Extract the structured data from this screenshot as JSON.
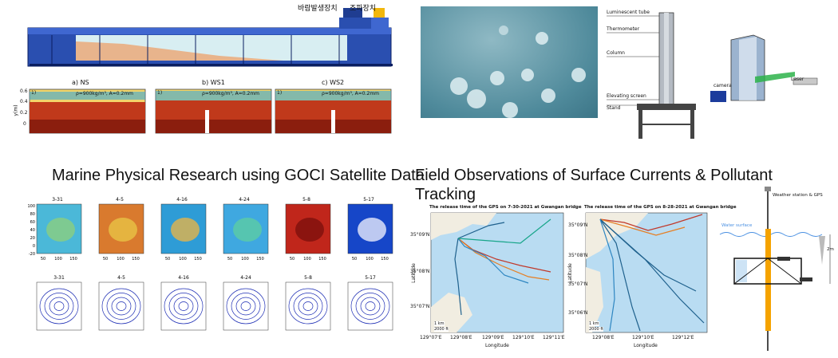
{
  "flume": {
    "labels": {
      "wind": "바람발생장치",
      "wave": "조파장치"
    },
    "panel_titles": [
      "a) NS",
      "b) WS1",
      "c) WS2"
    ],
    "panel_index": "1)",
    "panel_annotation": "ρ=900kg/m³, A=0.2mm",
    "y_axis_label": "y(m)",
    "y_ticks": [
      "0.6",
      "0.4",
      "0.2",
      "0"
    ]
  },
  "column": {
    "labels": [
      "Luminescent tube",
      "Thermometer",
      "Column",
      "Elevating screen",
      "Stand"
    ],
    "camera_label": "camera",
    "laser_label": "Laser"
  },
  "goci": {
    "heading": "Marine Physical Research using GOCI Satellite Data",
    "dates": [
      "3-31",
      "4-5",
      "4-16",
      "4-24",
      "5-8",
      "5-17"
    ],
    "y_ticks": [
      "100",
      "80",
      "60",
      "40",
      "20",
      "0",
      "-20"
    ],
    "x_ticks": [
      "50",
      "100",
      "150"
    ]
  },
  "field": {
    "heading_line1": "Field Observations of Surface Currents & Pollutant",
    "heading_line2": "Tracking",
    "map1_title": "The release time of the GPS on 7-30-2021 at Gwangan bridge",
    "map2_title": "The release time of the GPS on 8-28-2021 at Gwangan bridge",
    "map1_lat_ticks": [
      "35°09'N",
      "35°08'N",
      "35°07'N"
    ],
    "map1_lon_ticks": [
      "129°07'E",
      "129°08'E",
      "129°09'E",
      "129°10'E",
      "129°11'E"
    ],
    "map2_lat_ticks": [
      "35°09'N",
      "35°08'N",
      "35°07'N",
      "35°06'N"
    ],
    "map2_lon_ticks": [
      "129°08'E",
      "129°10'E",
      "129°12'E"
    ],
    "ylabel": "Latitude",
    "xlabel": "Longitude",
    "scale1": "1 km",
    "scale2": "2000 ft",
    "weather_label": "Weather station & GPS",
    "water_label": "Water surface",
    "depth_label": "2m"
  }
}
